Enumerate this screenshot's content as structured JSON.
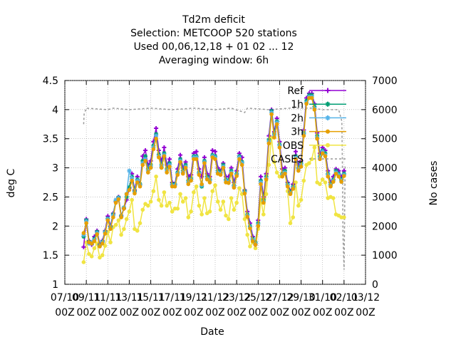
{
  "chart_data": {
    "type": "line",
    "title_lines": [
      "Td2m deficit",
      "Selection: METCOOP    520 stations",
      "Used  00,06,12,18 + 01 02 ... 12",
      "Averaging window:  6h"
    ],
    "xlabel": "Date",
    "ylabel": "deg C",
    "y2label": "No cases",
    "xlim": [
      0,
      28
    ],
    "ylim": [
      1,
      4.5
    ],
    "y2lim": [
      0,
      7000
    ],
    "x_ticks": [
      {
        "v": 0,
        "line1": "07/10",
        "line2": "00Z"
      },
      {
        "v": 2,
        "line1": "09/11",
        "line2": "00Z"
      },
      {
        "v": 4,
        "line1": "11/11",
        "line2": "00Z"
      },
      {
        "v": 6,
        "line1": "13/11",
        "line2": "00Z"
      },
      {
        "v": 8,
        "line1": "15/11",
        "line2": "00Z"
      },
      {
        "v": 10,
        "line1": "17/11",
        "line2": "00Z"
      },
      {
        "v": 12,
        "line1": "19/11",
        "line2": "00Z"
      },
      {
        "v": 14,
        "line1": "21/12",
        "line2": "00Z"
      },
      {
        "v": 16,
        "line1": "23/12",
        "line2": "00Z"
      },
      {
        "v": 18,
        "line1": "25/12",
        "line2": "00Z"
      },
      {
        "v": 20,
        "line1": "27/12",
        "line2": "00Z"
      },
      {
        "v": 22,
        "line1": "29/10",
        "line2": "00Z"
      },
      {
        "v": 24,
        "line1": "31/10",
        "line2": "00Z"
      },
      {
        "v": 26,
        "line1": "02/11",
        "line2": "00Z"
      },
      {
        "v": 28,
        "line1": "03/12",
        "line2": "00Z"
      }
    ],
    "y_ticks": [
      "1",
      "1.5",
      "2",
      "2.5",
      "3",
      "3.5",
      "4",
      "4.5"
    ],
    "y2_ticks": [
      "0",
      "1000",
      "2000",
      "3000",
      "4000",
      "5000",
      "6000",
      "7000"
    ],
    "x_start": 1.75,
    "x_step": 0.25,
    "series": [
      {
        "name": "Ref",
        "color": "#9400d3",
        "marker": "plus",
        "values": [
          1.64,
          2.12,
          1.75,
          1.68,
          1.82,
          1.92,
          1.69,
          1.75,
          1.92,
          2.17,
          2.0,
          2.22,
          2.42,
          2.5,
          2.18,
          2.3,
          2.45,
          2.65,
          2.9,
          2.62,
          2.85,
          2.72,
          3.2,
          3.3,
          3.05,
          3.12,
          3.45,
          3.68,
          3.3,
          3.12,
          3.35,
          3.05,
          3.15,
          2.75,
          2.72,
          2.98,
          3.22,
          3.0,
          3.1,
          2.85,
          2.88,
          3.25,
          3.28,
          2.98,
          2.85,
          3.18,
          2.9,
          2.85,
          3.3,
          3.28,
          3.0,
          2.95,
          3.08,
          2.85,
          2.85,
          3.0,
          2.75,
          2.95,
          3.25,
          3.18,
          2.62,
          2.25,
          2.05,
          1.82,
          1.68,
          2.1,
          2.85,
          2.5,
          2.9,
          3.55,
          4.0,
          3.62,
          3.85,
          3.45,
          2.98,
          3.0,
          2.75,
          2.6,
          2.72,
          3.28,
          3.05,
          3.12,
          3.65,
          4.2,
          4.28,
          4.28,
          4.1,
          3.6,
          3.25,
          3.35,
          3.3,
          2.95,
          2.75,
          2.85,
          2.98,
          2.95,
          2.85,
          2.95
        ]
      },
      {
        "name": "1h",
        "color": "#009e73",
        "marker": "star",
        "values": [
          1.82,
          2.1,
          1.73,
          1.7,
          1.78,
          1.9,
          1.67,
          1.73,
          1.9,
          2.13,
          1.98,
          2.2,
          2.43,
          2.49,
          2.17,
          2.31,
          2.5,
          2.67,
          2.85,
          2.6,
          2.8,
          2.72,
          3.12,
          3.2,
          2.98,
          3.05,
          3.38,
          3.58,
          3.23,
          3.05,
          3.25,
          2.98,
          3.08,
          2.72,
          2.72,
          2.92,
          3.15,
          2.95,
          3.05,
          2.78,
          2.82,
          3.2,
          3.2,
          2.92,
          2.68,
          3.12,
          2.85,
          2.8,
          3.22,
          3.2,
          2.95,
          2.92,
          3.05,
          2.8,
          2.78,
          2.95,
          2.7,
          2.9,
          3.2,
          3.1,
          2.6,
          2.2,
          2.0,
          1.78,
          1.72,
          2.05,
          2.78,
          2.45,
          2.85,
          3.48,
          3.98,
          3.58,
          3.8,
          3.4,
          2.9,
          2.95,
          2.72,
          2.58,
          2.68,
          3.2,
          3.0,
          3.08,
          3.6,
          4.15,
          4.25,
          4.25,
          4.05,
          3.55,
          3.2,
          3.3,
          3.25,
          2.9,
          2.72,
          2.8,
          2.95,
          2.9,
          2.8,
          2.9
        ]
      },
      {
        "name": "2h",
        "color": "#56b4e9",
        "marker": "star",
        "values": [
          1.85,
          2.08,
          1.7,
          1.72,
          1.76,
          1.88,
          1.66,
          1.72,
          1.89,
          2.12,
          1.97,
          2.18,
          2.45,
          2.48,
          2.16,
          2.32,
          2.55,
          2.95,
          2.82,
          2.58,
          2.78,
          2.7,
          3.08,
          3.15,
          2.95,
          3.02,
          3.35,
          3.55,
          3.2,
          3.02,
          3.22,
          2.95,
          3.05,
          2.7,
          2.7,
          2.9,
          3.12,
          2.92,
          3.02,
          2.75,
          2.8,
          3.18,
          3.18,
          2.9,
          2.7,
          3.1,
          2.82,
          2.78,
          3.2,
          3.18,
          2.92,
          2.9,
          3.02,
          2.78,
          2.76,
          2.92,
          2.68,
          2.88,
          3.18,
          3.08,
          2.58,
          2.18,
          1.98,
          1.76,
          1.7,
          2.02,
          2.75,
          2.42,
          2.82,
          3.45,
          3.95,
          3.55,
          3.78,
          3.38,
          2.88,
          2.92,
          2.7,
          2.56,
          2.66,
          3.18,
          2.98,
          3.05,
          3.58,
          4.12,
          4.22,
          4.22,
          4.02,
          3.52,
          3.18,
          3.28,
          3.22,
          2.88,
          2.7,
          2.78,
          2.92,
          2.88,
          2.78,
          2.88
        ]
      },
      {
        "name": "3h",
        "color": "#e69f00",
        "marker": "dot",
        "values": [
          1.88,
          2.05,
          1.72,
          1.7,
          1.74,
          1.86,
          1.65,
          1.7,
          1.87,
          2.1,
          1.95,
          2.15,
          2.4,
          2.46,
          2.15,
          2.3,
          2.55,
          2.62,
          2.78,
          2.56,
          2.75,
          2.68,
          3.05,
          3.12,
          2.92,
          3.0,
          3.32,
          3.5,
          3.18,
          3.0,
          3.2,
          2.92,
          3.02,
          2.68,
          2.68,
          2.88,
          3.1,
          2.9,
          3.0,
          2.72,
          2.78,
          3.15,
          3.15,
          2.88,
          2.72,
          3.08,
          2.8,
          2.75,
          3.18,
          3.15,
          2.9,
          2.88,
          3.0,
          2.75,
          2.74,
          2.9,
          2.66,
          2.86,
          3.15,
          3.05,
          2.56,
          2.16,
          1.96,
          1.74,
          1.68,
          2.0,
          2.72,
          2.4,
          2.8,
          3.42,
          3.92,
          3.52,
          3.75,
          3.35,
          2.85,
          2.9,
          2.68,
          2.55,
          2.64,
          3.15,
          2.95,
          3.02,
          3.55,
          4.1,
          4.2,
          4.2,
          4.0,
          3.5,
          3.15,
          3.25,
          3.2,
          2.85,
          2.68,
          2.76,
          2.9,
          2.85,
          2.76,
          2.86
        ]
      },
      {
        "name": "OBS",
        "color": "#f0e442",
        "marker": "dot",
        "values": [
          1.38,
          1.72,
          1.52,
          1.48,
          1.62,
          1.7,
          1.46,
          1.5,
          1.66,
          1.9,
          1.72,
          1.98,
          2.02,
          2.1,
          1.85,
          1.95,
          2.12,
          2.25,
          2.45,
          1.95,
          1.92,
          2.05,
          2.28,
          2.38,
          2.35,
          2.42,
          2.6,
          2.85,
          2.45,
          2.35,
          2.58,
          2.35,
          2.4,
          2.25,
          2.3,
          2.3,
          2.55,
          2.42,
          2.48,
          2.15,
          2.25,
          2.58,
          2.68,
          2.35,
          2.2,
          2.48,
          2.22,
          2.25,
          2.6,
          2.7,
          2.42,
          2.28,
          2.42,
          2.18,
          2.12,
          2.48,
          2.28,
          2.4,
          2.65,
          2.55,
          2.12,
          1.85,
          1.65,
          1.72,
          1.62,
          1.95,
          2.45,
          2.2,
          2.55,
          3.05,
          3.52,
          3.1,
          2.92,
          2.85,
          2.88,
          2.95,
          2.6,
          2.05,
          2.15,
          2.75,
          2.35,
          2.45,
          2.78,
          3.05,
          3.08,
          3.15,
          3.35,
          2.75,
          2.72,
          2.8,
          2.75,
          2.48,
          2.5,
          2.48,
          2.2,
          2.18,
          2.15,
          2.15
        ]
      }
    ],
    "cases": {
      "name": "CASES",
      "color": "#999999",
      "points": [
        [
          1.75,
          5500
        ],
        [
          1.8,
          5850
        ],
        [
          2.0,
          6050
        ],
        [
          4.0,
          6000
        ],
        [
          4.5,
          6050
        ],
        [
          6.0,
          6000
        ],
        [
          8.0,
          6050
        ],
        [
          10.0,
          6000
        ],
        [
          12.0,
          6050
        ],
        [
          14.0,
          6000
        ],
        [
          15.5,
          6050
        ],
        [
          16.75,
          5900
        ],
        [
          17.0,
          6050
        ],
        [
          19.0,
          6000
        ],
        [
          21.0,
          6050
        ],
        [
          23.0,
          6050
        ],
        [
          24.0,
          6000
        ],
        [
          25.5,
          6000
        ],
        [
          25.8,
          5600
        ],
        [
          25.85,
          4000
        ],
        [
          25.9,
          1700
        ],
        [
          26.0,
          500
        ],
        [
          26.1,
          4100
        ]
      ]
    }
  }
}
